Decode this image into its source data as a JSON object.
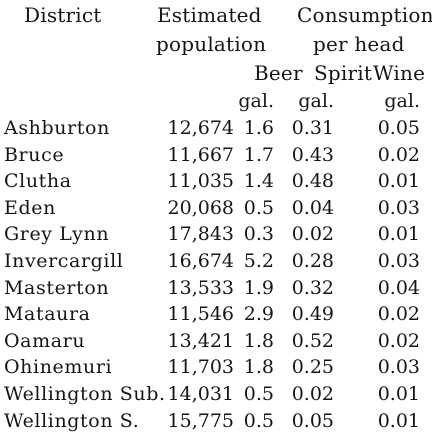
{
  "header": {
    "district": "District",
    "estimated": "Estimated",
    "population": "population",
    "consumption": "Consumption",
    "per_head": "per head",
    "beer": "Beer",
    "spirit": "Spirit",
    "wine": "Wine",
    "units": [
      "gal.",
      "gal.",
      "gal."
    ]
  },
  "rows": [
    {
      "district": "Ashburton",
      "population": "12,674",
      "beer": "1.6",
      "spirit": "0.31",
      "wine": "0.05"
    },
    {
      "district": "Bruce",
      "population": "11,667",
      "beer": "1.7",
      "spirit": "0.43",
      "wine": "0.02"
    },
    {
      "district": "Clutha",
      "population": "11,035",
      "beer": "1.4",
      "spirit": "0.48",
      "wine": "0.01"
    },
    {
      "district": "Eden",
      "population": "20,068",
      "beer": "0.5",
      "spirit": "0.04",
      "wine": "0.03"
    },
    {
      "district": "Grey Lynn",
      "population": "17,843",
      "beer": "0.3",
      "spirit": "0.02",
      "wine": "0.01"
    },
    {
      "district": "Invercargill",
      "population": "16,674",
      "beer": "5.2",
      "spirit": "0.28",
      "wine": "0.03"
    },
    {
      "district": "Masterton",
      "population": "13,533",
      "beer": "1.9",
      "spirit": "0.32",
      "wine": "0.04"
    },
    {
      "district": "Mataura",
      "population": "11,546",
      "beer": "2.9",
      "spirit": "0.49",
      "wine": "0.02"
    },
    {
      "district": "Oamaru",
      "population": "13,421",
      "beer": "1.8",
      "spirit": "0.52",
      "wine": "0.02"
    },
    {
      "district": "Ohinemuri",
      "population": "11,703",
      "beer": "1.8",
      "spirit": "0.25",
      "wine": "0.03"
    },
    {
      "district": "Wellington Sub.",
      "population": "14,031",
      "beer": "0.5",
      "spirit": "0.02",
      "wine": "0.01"
    },
    {
      "district": "Wellington S.",
      "population": "15,775",
      "beer": "0.5",
      "spirit": "0.05",
      "wine": "0.01"
    }
  ]
}
